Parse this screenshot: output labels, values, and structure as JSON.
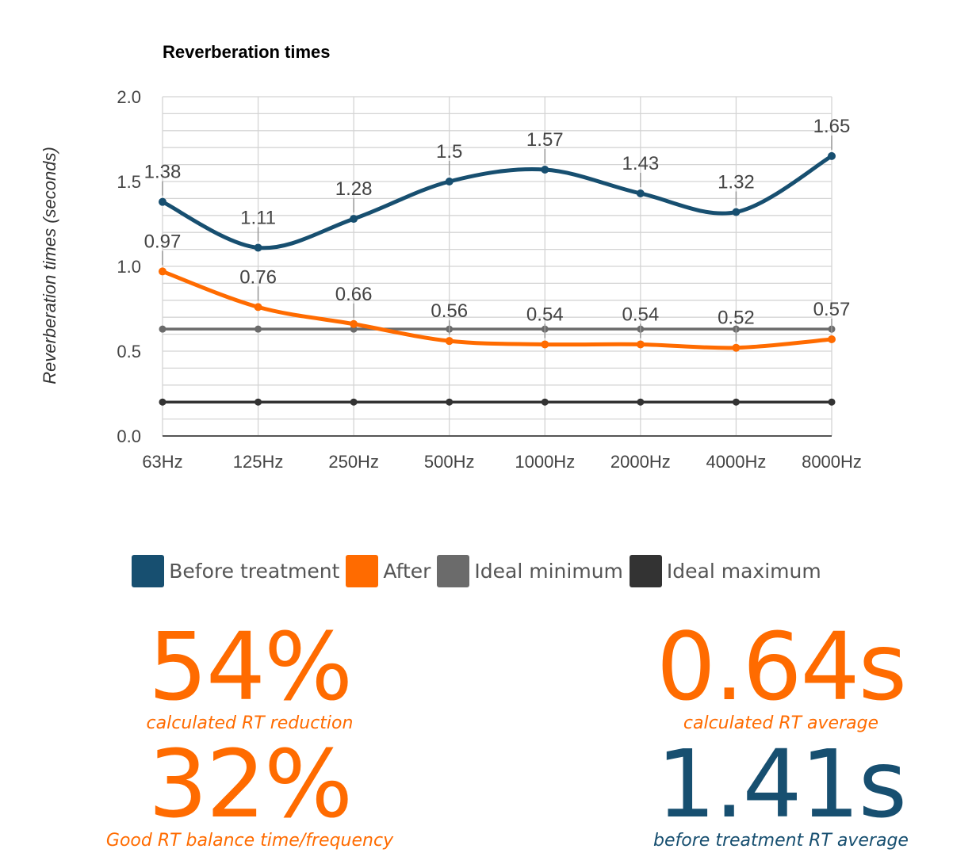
{
  "chart_data": {
    "type": "line",
    "title": "Reverberation times",
    "xlabel": "",
    "ylabel": "Reverberation times (seconds)",
    "categories": [
      "63Hz",
      "125Hz",
      "250Hz",
      "500Hz",
      "1000Hz",
      "2000Hz",
      "4000Hz",
      "8000Hz"
    ],
    "ylim": [
      0,
      2.0
    ],
    "yticks": [
      0.0,
      0.5,
      1.0,
      1.5,
      2.0
    ],
    "ytick_labels": [
      "0.0",
      "0.5",
      "1.0",
      "1.5",
      "2.0"
    ],
    "grid": true,
    "legend_position": "bottom",
    "series": [
      {
        "name": "Before treatment",
        "color": "#174f70",
        "smooth": true,
        "show_labels": true,
        "values": [
          1.38,
          1.11,
          1.28,
          1.5,
          1.57,
          1.43,
          1.32,
          1.65
        ],
        "labels": [
          "1.38",
          "1.11",
          "1.28",
          "1.5",
          "1.57",
          "1.43",
          "1.32",
          "1.65"
        ]
      },
      {
        "name": "After",
        "color": "#ff6b00",
        "smooth": true,
        "show_labels": true,
        "values": [
          0.97,
          0.76,
          0.66,
          0.56,
          0.54,
          0.54,
          0.52,
          0.57
        ],
        "labels": [
          "0.97",
          "0.76",
          "0.66",
          "0.56",
          "0.54",
          "0.54",
          "0.52",
          "0.57"
        ]
      },
      {
        "name": "Ideal minimum",
        "color": "#6b6b6b",
        "smooth": false,
        "show_labels": false,
        "values": [
          0.63,
          0.63,
          0.63,
          0.63,
          0.63,
          0.63,
          0.63,
          0.63
        ]
      },
      {
        "name": "Ideal maximum",
        "color": "#333333",
        "smooth": false,
        "show_labels": false,
        "values": [
          0.2,
          0.2,
          0.2,
          0.2,
          0.2,
          0.2,
          0.2,
          0.2
        ]
      }
    ]
  },
  "stats": {
    "rt_reduction": {
      "value": "54%",
      "label": "calculated RT reduction",
      "color": "#ff6b00"
    },
    "rt_average": {
      "value": "0.64s",
      "label": "calculated RT average",
      "color": "#ff6b00"
    },
    "balance": {
      "value": "32%",
      "label": "Good RT balance time/frequency",
      "color": "#ff6b00"
    },
    "before_average": {
      "value": "1.41s",
      "label": "before treatment RT average",
      "color": "#174f70"
    }
  }
}
